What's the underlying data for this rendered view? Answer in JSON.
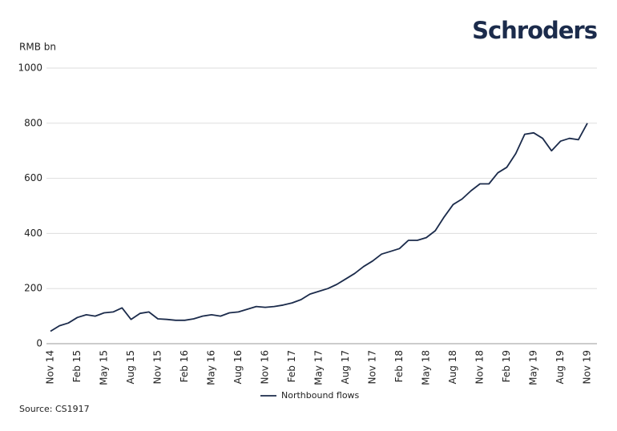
{
  "brand": "Schroders",
  "chart_data": {
    "type": "line",
    "y_label": "RMB bn",
    "categories": [
      "Nov 14",
      null,
      null,
      "Feb 15",
      null,
      null,
      "May 15",
      null,
      null,
      "Aug 15",
      null,
      null,
      "Nov 15",
      null,
      null,
      "Feb 16",
      null,
      null,
      "May 16",
      null,
      null,
      "Aug 16",
      null,
      null,
      "Nov 16",
      null,
      null,
      "Feb 17",
      null,
      null,
      "May 17",
      null,
      null,
      "Aug 17",
      null,
      null,
      "Nov 17",
      null,
      null,
      "Feb 18",
      null,
      null,
      "May 18",
      null,
      null,
      "Aug 18",
      null,
      null,
      "Nov 18",
      null,
      null,
      "Feb 19",
      null,
      null,
      "May 19",
      null,
      null,
      "Aug 19",
      null,
      null,
      "Nov 19"
    ],
    "series": [
      {
        "name": "Northbound flows",
        "color": "#1b2b4b",
        "values": [
          45,
          65,
          75,
          95,
          105,
          100,
          112,
          115,
          130,
          88,
          110,
          115,
          90,
          88,
          85,
          85,
          90,
          100,
          105,
          100,
          112,
          115,
          125,
          135,
          132,
          135,
          140,
          148,
          160,
          180,
          190,
          200,
          215,
          235,
          255,
          280,
          300,
          325,
          335,
          345,
          375,
          375,
          385,
          410,
          460,
          505,
          525,
          555,
          580,
          580,
          620,
          640,
          690,
          760,
          765,
          745,
          700,
          735,
          745,
          740,
          800
        ]
      }
    ],
    "ylim": [
      0,
      1000
    ],
    "yticks": [
      0,
      200,
      400,
      600,
      800,
      1000
    ],
    "grid": true,
    "legend": "bottom",
    "source": "Source: CS1917"
  }
}
